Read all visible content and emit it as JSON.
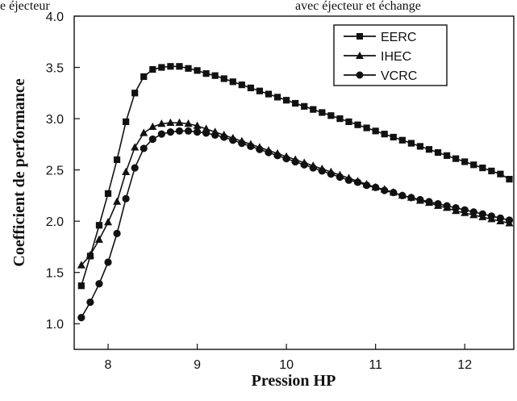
{
  "top_text": {
    "left": "e éjecteur",
    "right": "avec éjecteur et échange"
  },
  "chart_data": {
    "type": "line",
    "xlabel": "Pression HP",
    "ylabel": "Coefficient de performance",
    "xlim": [
      7.62,
      12.55
    ],
    "ylim": [
      0.75,
      4.0
    ],
    "xticks": [
      8,
      9,
      10,
      11,
      12
    ],
    "yticks": [
      1.0,
      1.5,
      2.0,
      2.5,
      3.0,
      3.5,
      4.0
    ],
    "xtick_labels": [
      "8",
      "9",
      "10",
      "11",
      "12"
    ],
    "ytick_labels": [
      "1.0",
      "1.5",
      "2.0",
      "2.5",
      "3.0",
      "3.5",
      "4.0"
    ],
    "grid": false,
    "legend_position": "top-right",
    "x": [
      7.7,
      7.8,
      7.9,
      8.0,
      8.1,
      8.2,
      8.3,
      8.4,
      8.5,
      8.6,
      8.7,
      8.8,
      8.9,
      9.0,
      9.1,
      9.2,
      9.3,
      9.4,
      9.5,
      9.6,
      9.7,
      9.8,
      9.9,
      10.0,
      10.1,
      10.2,
      10.3,
      10.4,
      10.5,
      10.6,
      10.7,
      10.8,
      10.9,
      11.0,
      11.1,
      11.2,
      11.3,
      11.4,
      11.5,
      11.6,
      11.7,
      11.8,
      11.9,
      12.0,
      12.1,
      12.2,
      12.3,
      12.4,
      12.5
    ],
    "series": [
      {
        "name": "EERC",
        "marker": "square",
        "color": "#111111",
        "values": [
          1.37,
          1.66,
          1.96,
          2.27,
          2.6,
          2.97,
          3.25,
          3.41,
          3.48,
          3.5,
          3.51,
          3.51,
          3.49,
          3.47,
          3.44,
          3.42,
          3.39,
          3.36,
          3.33,
          3.3,
          3.27,
          3.24,
          3.21,
          3.18,
          3.15,
          3.12,
          3.09,
          3.06,
          3.03,
          3.0,
          2.97,
          2.94,
          2.91,
          2.88,
          2.85,
          2.82,
          2.79,
          2.76,
          2.73,
          2.7,
          2.67,
          2.64,
          2.61,
          2.58,
          2.55,
          2.52,
          2.49,
          2.46,
          2.41
        ]
      },
      {
        "name": "IHEC",
        "marker": "triangle",
        "color": "#111111",
        "values": [
          1.57,
          1.67,
          1.82,
          1.99,
          2.19,
          2.48,
          2.72,
          2.86,
          2.92,
          2.95,
          2.96,
          2.96,
          2.95,
          2.93,
          2.9,
          2.87,
          2.84,
          2.81,
          2.78,
          2.75,
          2.72,
          2.69,
          2.66,
          2.63,
          2.6,
          2.57,
          2.54,
          2.51,
          2.48,
          2.45,
          2.42,
          2.39,
          2.36,
          2.33,
          2.31,
          2.28,
          2.25,
          2.23,
          2.2,
          2.18,
          2.15,
          2.13,
          2.1,
          2.08,
          2.06,
          2.04,
          2.02,
          2.0,
          1.98
        ]
      },
      {
        "name": "VCRC",
        "marker": "circle",
        "color": "#111111",
        "values": [
          1.06,
          1.21,
          1.39,
          1.6,
          1.88,
          2.22,
          2.52,
          2.71,
          2.8,
          2.85,
          2.87,
          2.88,
          2.88,
          2.87,
          2.86,
          2.84,
          2.82,
          2.79,
          2.76,
          2.73,
          2.7,
          2.67,
          2.64,
          2.61,
          2.58,
          2.55,
          2.52,
          2.49,
          2.46,
          2.43,
          2.4,
          2.38,
          2.35,
          2.33,
          2.3,
          2.28,
          2.25,
          2.23,
          2.21,
          2.19,
          2.17,
          2.15,
          2.13,
          2.11,
          2.09,
          2.07,
          2.05,
          2.03,
          2.01
        ]
      }
    ]
  }
}
